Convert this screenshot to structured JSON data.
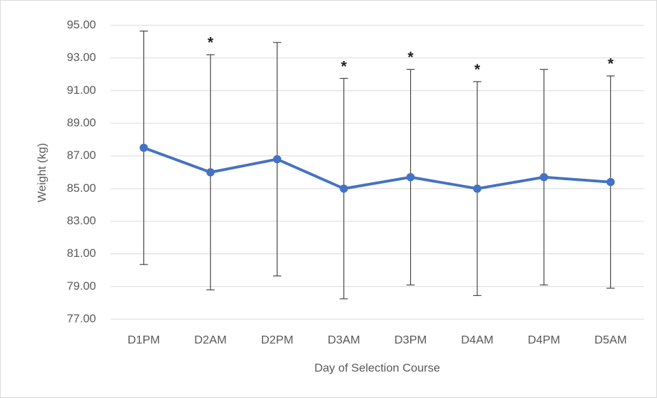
{
  "chart_data": {
    "type": "line",
    "x_label": "Day of Selection Course",
    "y_label": "Weight (kg)",
    "categories": [
      "D1PM",
      "D2AM",
      "D2PM",
      "D3AM",
      "D3PM",
      "D4AM",
      "D4PM",
      "D5AM"
    ],
    "series": [
      {
        "name": "Weight",
        "color": "#4472c4",
        "values": [
          87.5,
          86.0,
          86.8,
          85.0,
          85.7,
          85.0,
          85.7,
          85.4
        ],
        "errors": [
          7.15,
          7.2,
          7.15,
          6.75,
          6.6,
          6.55,
          6.6,
          6.5
        ]
      }
    ],
    "annotations": [
      null,
      "*",
      null,
      "*",
      "*",
      "*",
      null,
      "*"
    ],
    "ylim": [
      77,
      95
    ],
    "yticks": [
      {
        "value": 77,
        "label": "77.00"
      },
      {
        "value": 79,
        "label": "79.00"
      },
      {
        "value": 81,
        "label": "81.00"
      },
      {
        "value": 83,
        "label": "83.00"
      },
      {
        "value": 85,
        "label": "85.00"
      },
      {
        "value": 87,
        "label": "87.00"
      },
      {
        "value": 89,
        "label": "89.00"
      },
      {
        "value": 91,
        "label": "91.00"
      },
      {
        "value": 93,
        "label": "93.00"
      },
      {
        "value": 95,
        "label": "95.00"
      }
    ],
    "grid": true
  }
}
